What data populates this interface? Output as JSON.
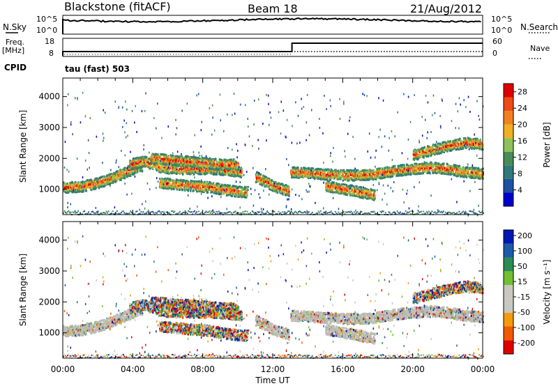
{
  "header": {
    "station": "Blackstone (fitACF)",
    "beam": "Beam 18",
    "date": "21/Aug/2012"
  },
  "strip_labels": {
    "nsky": "N.Sky",
    "nsearch": "N.Search",
    "freq": "Freq.",
    "mhz": "[MHz]",
    "nave": "Nave",
    "cpid_label": "CPID",
    "cpid_value": "tau (fast) 503"
  },
  "strip_ticks": {
    "noise_left": [
      "10^5",
      "10^0"
    ],
    "noise_right": [
      "10^5",
      "10^0"
    ],
    "freq_left": [
      "18",
      "8"
    ],
    "nave_right": [
      "60",
      "0"
    ]
  },
  "colors": {
    "power_scale": [
      "#0000cc",
      "#1f4fa0",
      "#2f7a78",
      "#4a8c58",
      "#8fc05a",
      "#f0b020",
      "#f28020",
      "#ee4a18",
      "#e00000"
    ],
    "velocity_scale": [
      "#e00000",
      "#f05a00",
      "#f49a10",
      "#c8c8c0",
      "#c8c8c0",
      "#70c030",
      "#2a8c50",
      "#1e5aa8",
      "#0018b4"
    ],
    "ground_scatter": "#bdbcb4"
  },
  "chart_data": [
    {
      "type": "heatmap",
      "panel": "power",
      "xlabel": "",
      "ylabel": "Slant Range [km]",
      "xlim": [
        "00:00",
        "24:00"
      ],
      "ylim": [
        180,
        4600
      ],
      "yticks": [
        "1000",
        "2000",
        "3000",
        "4000"
      ],
      "colorbar": {
        "label": "Power [dB]",
        "ticks": [
          "4",
          "8",
          "12",
          "16",
          "20",
          "24",
          "28"
        ],
        "range": [
          0,
          30
        ]
      },
      "series": [
        {
          "x": [
            0.0,
            1.0,
            2.0,
            3.0,
            4.0,
            4.5
          ],
          "y": [
            1050,
            1080,
            1200,
            1400,
            1650,
            1750
          ]
        },
        {
          "x": [
            3.8,
            4.6,
            5.6,
            6.6,
            7.6,
            8.6,
            9.6,
            10.2
          ],
          "y": [
            1800,
            1900,
            1700,
            1650,
            1650,
            1650,
            1600,
            1550
          ]
        },
        {
          "x": [
            5.0,
            6.0,
            7.0,
            8.0,
            9.0,
            10.0
          ],
          "y": [
            2000,
            1950,
            1900,
            1850,
            1800,
            1800
          ]
        },
        {
          "x": [
            5.5,
            6.5,
            7.5,
            8.5,
            9.5,
            10.5
          ],
          "y": [
            1200,
            1150,
            1100,
            1050,
            950,
            900
          ]
        },
        {
          "x": [
            11.0,
            11.5,
            12.0,
            12.5,
            12.9
          ],
          "y": [
            1400,
            1250,
            1100,
            1000,
            950
          ]
        },
        {
          "x": [
            13.0,
            14.0,
            15.0,
            16.0,
            17.0,
            18.0,
            19.0,
            20.0,
            21.0,
            22.0,
            23.0,
            24.0
          ],
          "y": [
            1550,
            1520,
            1480,
            1450,
            1450,
            1500,
            1600,
            1650,
            1700,
            1650,
            1550,
            1500
          ]
        },
        {
          "x": [
            15.0,
            16.0,
            17.0,
            17.8
          ],
          "y": [
            1100,
            1000,
            900,
            800
          ]
        },
        {
          "x": [
            20.0,
            21.0,
            22.0,
            23.0,
            24.0
          ],
          "y": [
            2100,
            2250,
            2400,
            2500,
            2450
          ]
        }
      ]
    },
    {
      "type": "heatmap",
      "panel": "velocity",
      "xlabel": "Time UT",
      "ylabel": "Slant Range [km]",
      "xlim": [
        "00:00",
        "24:00"
      ],
      "ylim": [
        180,
        4600
      ],
      "yticks": [
        "1000",
        "2000",
        "3000",
        "4000"
      ],
      "xticks": [
        "00:00",
        "04:00",
        "08:00",
        "12:00",
        "16:00",
        "20:00",
        "00:00"
      ],
      "colorbar": {
        "label": "Velocity [m s⁻¹]",
        "ticks": [
          "200",
          "100",
          "50",
          "15",
          "-15",
          "-50",
          "-100",
          "-200"
        ],
        "range": [
          -250,
          250
        ]
      }
    }
  ]
}
